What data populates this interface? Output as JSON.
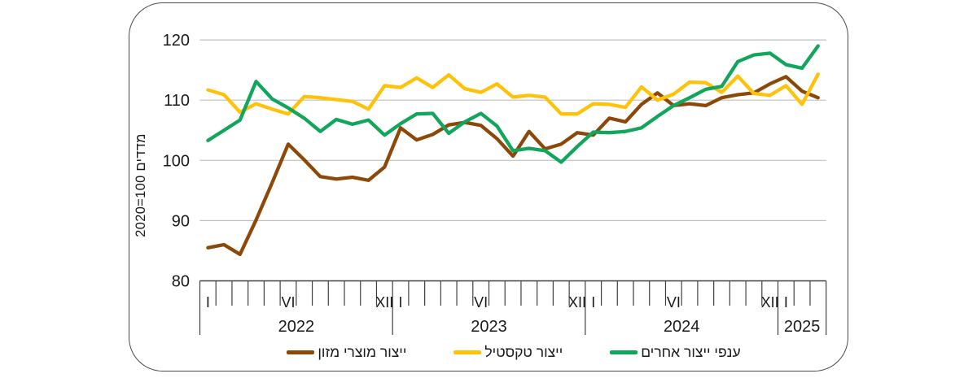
{
  "chart_data": {
    "type": "line",
    "title": "",
    "ylabel_display": "2020=100 מדדים",
    "ylabel_meaning": "מדדים 2020=100",
    "ylim": [
      80,
      120
    ],
    "yticks": [
      80,
      90,
      100,
      110,
      120
    ],
    "grid": "horizontal",
    "x_start": "2022-01",
    "x_end": "2025-03",
    "n_months": 39,
    "month_marks": [
      {
        "month": 1,
        "label": "I"
      },
      {
        "month": 6,
        "label": "VI"
      },
      {
        "month": 12,
        "label": "XII"
      }
    ],
    "years": [
      "2022",
      "2023",
      "2024",
      "2025"
    ],
    "legend_position": "bottom",
    "series": [
      {
        "name": "ייצור מוצרי מזון",
        "color": "#8C4809",
        "values": [
          85.5,
          86.0,
          84.4,
          90.1,
          96.3,
          102.7,
          100.1,
          97.3,
          96.9,
          97.2,
          96.7,
          98.9,
          105.4,
          103.4,
          104.3,
          105.9,
          106.3,
          105.8,
          103.6,
          100.7,
          104.8,
          101.9,
          102.7,
          104.6,
          104.2,
          107.0,
          106.4,
          109.3,
          111.2,
          109.1,
          109.4,
          109.1,
          110.4,
          110.9,
          111.2,
          112.7,
          113.9,
          111.5,
          110.4
        ]
      },
      {
        "name": "ייצור טקסטיל",
        "color": "#FFC20A",
        "values": [
          111.7,
          110.9,
          108.0,
          109.4,
          108.5,
          107.7,
          110.6,
          110.4,
          110.1,
          109.8,
          108.5,
          112.4,
          112.1,
          113.7,
          112.1,
          114.2,
          111.9,
          111.3,
          112.7,
          110.5,
          110.8,
          110.5,
          107.7,
          107.7,
          109.4,
          109.3,
          108.8,
          112.2,
          110.0,
          111.0,
          113.0,
          112.9,
          111.3,
          114.0,
          111.1,
          110.8,
          112.4,
          109.3,
          114.3
        ]
      },
      {
        "name": "ענפי ייצור אחרים",
        "color": "#12A55C",
        "values": [
          103.3,
          105.0,
          106.7,
          113.1,
          110.2,
          108.7,
          107.0,
          104.8,
          106.8,
          106.0,
          106.7,
          104.2,
          106.1,
          107.7,
          107.8,
          104.5,
          106.4,
          107.8,
          105.7,
          101.6,
          102.0,
          101.6,
          99.7,
          102.3,
          104.7,
          104.6,
          104.8,
          105.4,
          107.3,
          109.1,
          110.4,
          111.8,
          112.3,
          116.4,
          117.5,
          117.8,
          115.9,
          115.3,
          119.0
        ]
      }
    ],
    "colors": {
      "gridline": "#BFBFBF",
      "axis": "#404040",
      "text": "#1a1a1a"
    }
  }
}
